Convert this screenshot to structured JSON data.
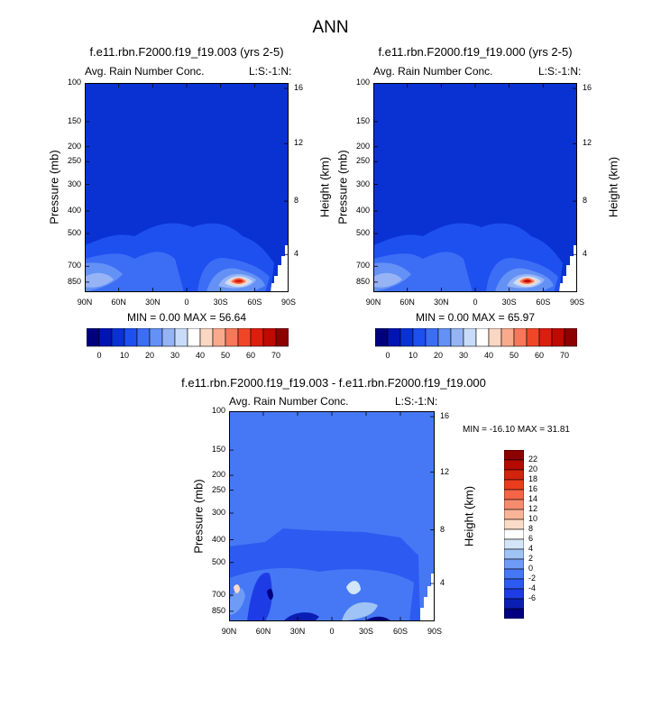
{
  "page_title": "ANN",
  "palette_main": [
    "#00007f",
    "#0014b4",
    "#0a32d2",
    "#1e50f0",
    "#3c6ef5",
    "#6491f5",
    "#96b4f5",
    "#c8dcfa",
    "#ffffff",
    "#fad7c3",
    "#faaa8c",
    "#f5785a",
    "#f04628",
    "#dc1e0f",
    "#be0a00",
    "#8c0000"
  ],
  "palette_diff": [
    "#000080",
    "#0a1eb4",
    "#1e3ce6",
    "#2d5af0",
    "#4678f5",
    "#6e9bf5",
    "#a0c3f5",
    "#d2e6f8",
    "#ffffff",
    "#fbdcc8",
    "#f8b496",
    "#f58c6e",
    "#f56446",
    "#eb3c1e",
    "#d2230f",
    "#b40a00",
    "#8c0000"
  ],
  "chart_data": [
    {
      "type": "heatmap",
      "title": "f.e11.rbn.F2000.f19_f19.003 (yrs 2-5)",
      "left_label": "Avg. Rain Number Conc.",
      "right_label": "L:S:-1:N:",
      "ylabel": "Pressure (mb)",
      "ylabel_right": "Height (km)",
      "x": [
        "90N",
        "60N",
        "30N",
        "0",
        "30S",
        "60S",
        "90S"
      ],
      "y_ticks": [
        "100",
        "150",
        "200",
        "250",
        "300",
        "400",
        "500",
        "700",
        "850"
      ],
      "y_right_ticks": [
        "16",
        "12",
        "8",
        "4"
      ],
      "min_max": "MIN =   0.00   MAX =  56.64",
      "colorbar_labels": [
        "0",
        "10",
        "20",
        "30",
        "40",
        "50",
        "60",
        "70"
      ],
      "values": {
        "min": 0.0,
        "max": 56.64
      }
    },
    {
      "type": "heatmap",
      "title": "f.e11.rbn.F2000.f19_f19.000 (yrs 2-5)",
      "left_label": "Avg. Rain Number Conc.",
      "right_label": "L:S:-1:N:",
      "ylabel": "Pressure (mb)",
      "ylabel_right": "Height (km)",
      "x": [
        "90N",
        "60N",
        "30N",
        "0",
        "30S",
        "60S",
        "90S"
      ],
      "y_ticks": [
        "100",
        "150",
        "200",
        "250",
        "300",
        "400",
        "500",
        "700",
        "850"
      ],
      "y_right_ticks": [
        "16",
        "12",
        "8",
        "4"
      ],
      "min_max": "MIN =   0.00   MAX =  65.97",
      "colorbar_labels": [
        "0",
        "10",
        "20",
        "30",
        "40",
        "50",
        "60",
        "70"
      ],
      "values": {
        "min": 0.0,
        "max": 65.97
      }
    },
    {
      "type": "heatmap",
      "title": "f.e11.rbn.F2000.f19_f19.003 - f.e11.rbn.F2000.f19_f19.000",
      "left_label": "Avg. Rain Number Conc.",
      "right_label": "L:S:-1:N:",
      "ylabel": "Pressure (mb)",
      "ylabel_right": "Height (km)",
      "x": [
        "90N",
        "60N",
        "30N",
        "0",
        "30S",
        "60S",
        "90S"
      ],
      "y_ticks": [
        "100",
        "150",
        "200",
        "250",
        "300",
        "400",
        "500",
        "700",
        "850"
      ],
      "y_right_ticks": [
        "16",
        "12",
        "8",
        "4"
      ],
      "min_max": "MIN = -16.10   MAX =  31.81",
      "colorbar_labels": [
        "22",
        "20",
        "18",
        "16",
        "14",
        "12",
        "10",
        "8",
        "6",
        "4",
        "2",
        "0",
        "-2",
        "-4",
        "-6"
      ],
      "values": {
        "min": -16.1,
        "max": 31.81
      }
    }
  ]
}
